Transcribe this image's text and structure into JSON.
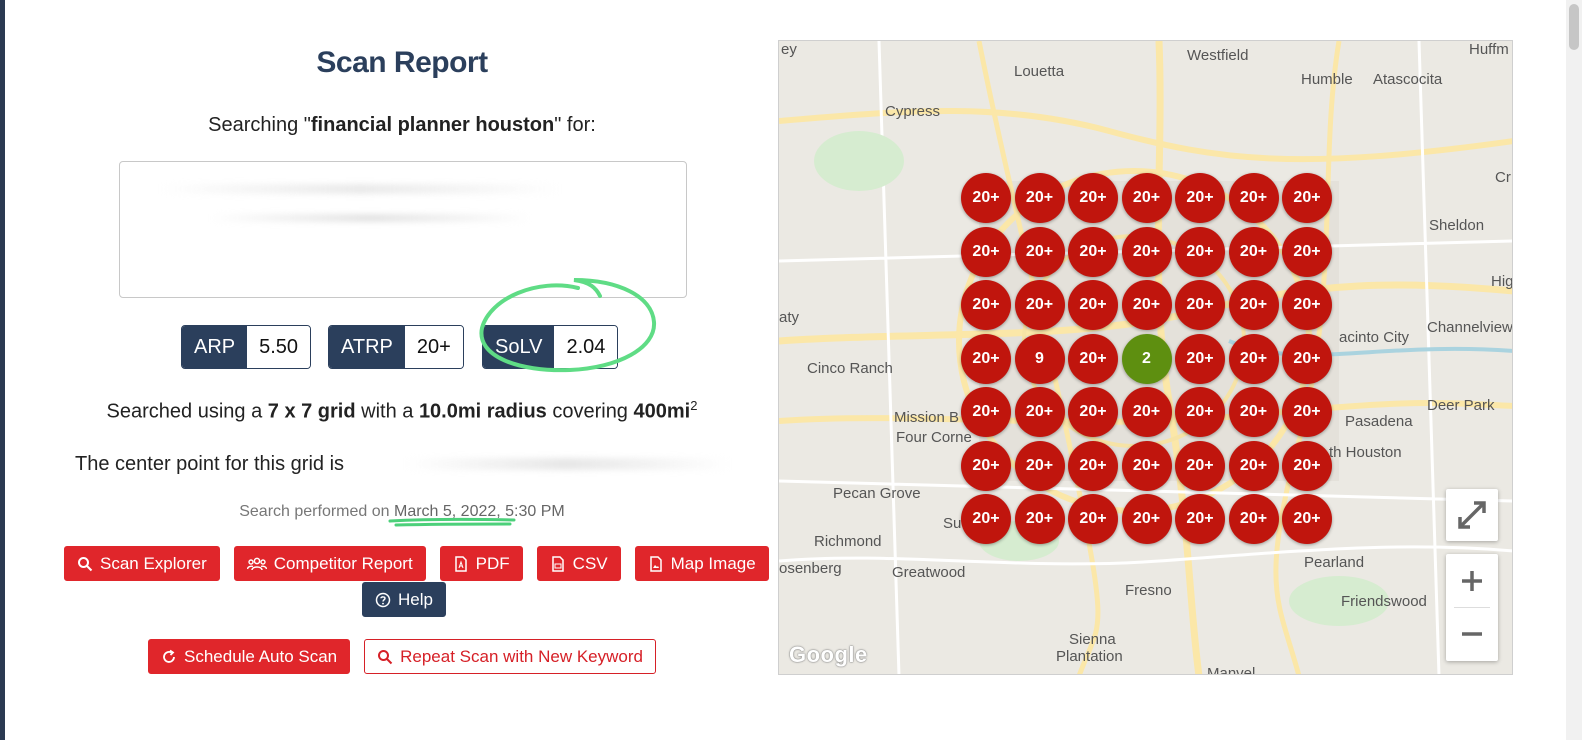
{
  "report": {
    "title": "Scan Report",
    "searching_prefix": "Searching \"",
    "keyword": "financial planner houston",
    "searching_suffix": "\" for:"
  },
  "metrics": [
    {
      "label": "ARP",
      "value": "5.50"
    },
    {
      "label": "ATRP",
      "value": "20+"
    },
    {
      "label": "SoLV",
      "value": "2.04"
    }
  ],
  "grid_info": {
    "prefix": "Searched using a ",
    "grid": "7 x 7 grid",
    "mid1": " with a ",
    "radius": "10.0mi radius",
    "mid2": " covering ",
    "area": "400mi",
    "area_sup": "2"
  },
  "center_text": "The center point for this grid is",
  "performed": {
    "prefix": "Search performed on ",
    "date": "March 5, 2022, 5:30 PM"
  },
  "buttons": {
    "scan_explorer": "Scan Explorer",
    "competitor_report": "Competitor Report",
    "pdf": "PDF",
    "csv": "CSV",
    "map_image": "Map Image",
    "help": "Help",
    "schedule": "Schedule Auto Scan",
    "repeat": "Repeat Scan with New Keyword"
  },
  "map": {
    "labels": [
      "ey",
      "Westfield",
      "Huffm",
      "Louetta",
      "Humble",
      "Atascocita",
      "Cypress",
      "Cr",
      "Sheldon",
      "Hig",
      "aty",
      "Channelview",
      "acinto City",
      "Cinco Ranch",
      "Deer Park",
      "Mission B",
      "Pasadena",
      "Four Corne",
      "th Houston",
      "Pecan Grove",
      "Su",
      "Richmond",
      "Pearland",
      "osenberg",
      "Greatwood",
      "Fresno",
      "Friendswood",
      "Sienna",
      "Plantation",
      "Manvel",
      "Google"
    ],
    "grid_rows": [
      [
        "20+",
        "20+",
        "20+",
        "20+",
        "20+",
        "20+",
        "20+"
      ],
      [
        "20+",
        "20+",
        "20+",
        "20+",
        "20+",
        "20+",
        "20+"
      ],
      [
        "20+",
        "20+",
        "20+",
        "20+",
        "20+",
        "20+",
        "20+"
      ],
      [
        "20+",
        "9",
        "20+",
        "2",
        "20+",
        "20+",
        "20+"
      ],
      [
        "20+",
        "20+",
        "20+",
        "20+",
        "20+",
        "20+",
        "20+"
      ],
      [
        "20+",
        "20+",
        "20+",
        "20+",
        "20+",
        "20+",
        "20+"
      ],
      [
        "20+",
        "20+",
        "20+",
        "20+",
        "20+",
        "20+",
        "20+"
      ]
    ],
    "highlight_value": "2",
    "colors": {
      "rank_bad": "#c0150d",
      "rank_good": "#5e8f10"
    }
  }
}
